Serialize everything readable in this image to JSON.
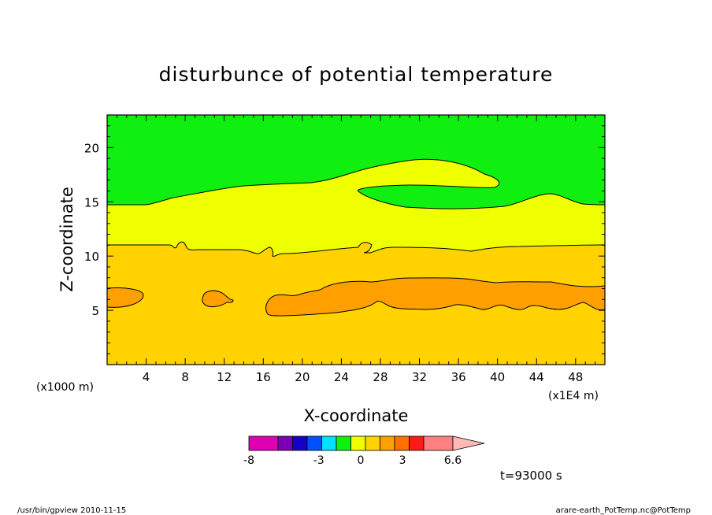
{
  "chart_data": {
    "type": "heatmap",
    "title": "disturbunce of potential temperature",
    "xlabel": "X-coordinate",
    "ylabel": "Z-coordinate",
    "x_unit_left": "(x1000 m)",
    "x_unit_right": "(x1E4 m)",
    "xlim": [
      0,
      51
    ],
    "ylim": [
      0,
      23
    ],
    "x_ticks": [
      4,
      8,
      12,
      16,
      20,
      24,
      28,
      32,
      36,
      40,
      44,
      48
    ],
    "y_ticks": [
      5,
      10,
      15,
      20
    ],
    "time_label": "t=93000 s",
    "colorbar": {
      "labels": [
        {
          "value": -8,
          "text": "-8"
        },
        {
          "value": -3,
          "text": "-3"
        },
        {
          "value": 0,
          "text": "0"
        },
        {
          "value": 3,
          "text": "3"
        },
        {
          "value": 6.6,
          "text": "6.6"
        }
      ],
      "bins": [
        {
          "color": "#e000b0",
          "span": 2
        },
        {
          "color": "#7a00b8",
          "span": 1
        },
        {
          "color": "#1400c8",
          "span": 1
        },
        {
          "color": "#0050ff",
          "span": 1
        },
        {
          "color": "#00e0ff",
          "span": 1
        },
        {
          "color": "#10f010",
          "span": 1
        },
        {
          "color": "#f0ff00",
          "span": 1
        },
        {
          "color": "#ffd200",
          "span": 1
        },
        {
          "color": "#ffa000",
          "span": 1
        },
        {
          "color": "#ff7000",
          "span": 1
        },
        {
          "color": "#ff1a1a",
          "span": 1
        },
        {
          "color": "#ff8080",
          "span": 2
        }
      ],
      "extend_color": "#ffb8b8"
    },
    "colors": {
      "upper_region": "#10f010",
      "middle_region": "#f0ff00",
      "lower_region": "#ffd200",
      "warm_band": "#ffa000"
    },
    "regions": [
      {
        "level": "upper",
        "color": "#10f010"
      },
      {
        "level": "middle",
        "color": "#f0ff00"
      },
      {
        "level": "lower",
        "color": "#ffd200"
      },
      {
        "level": "warm",
        "color": "#ffa000"
      }
    ]
  },
  "footer": {
    "left": "/usr/bin/gpview  2010-11-15",
    "right": "arare-earth_PotTemp.nc@PotTemp"
  }
}
